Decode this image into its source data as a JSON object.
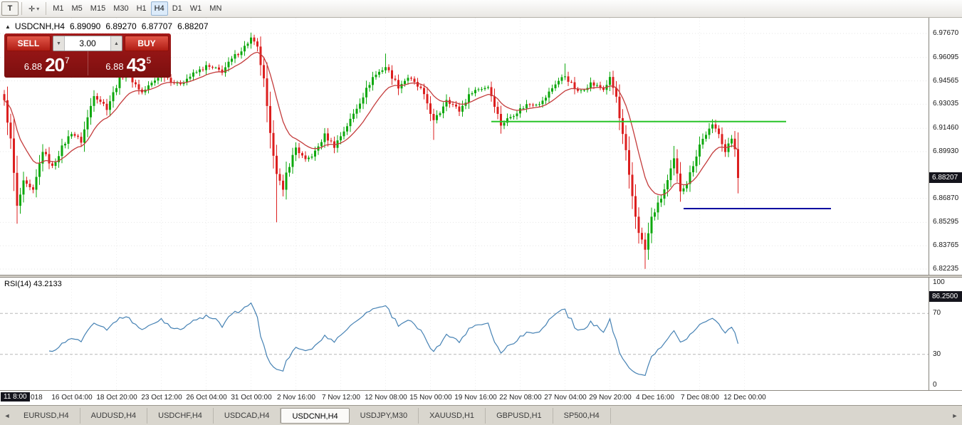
{
  "icons": {
    "collapse": "▲",
    "dropdown": "▾",
    "drawing_tool": "✛",
    "spin_down": "▼",
    "spin_up": "▲",
    "tab_left": "◄",
    "tab_right": "►"
  },
  "toolbar": {
    "left_button": "T",
    "timeframes": [
      "M1",
      "M5",
      "M15",
      "M30",
      "H1",
      "H4",
      "D1",
      "W1",
      "MN"
    ],
    "active_timeframe": "H4"
  },
  "chart": {
    "title": "USDCNH,H4",
    "ohlc": {
      "open": "6.89090",
      "high": "6.89270",
      "low": "6.87707",
      "close": "6.88207"
    }
  },
  "trade_panel": {
    "sell_label": "SELL",
    "buy_label": "BUY",
    "volume": "3.00",
    "sell_price": {
      "big": "6.88",
      "mid": "20",
      "sup": "7"
    },
    "buy_price": {
      "big": "6.88",
      "mid": "43",
      "sup": "5"
    }
  },
  "price_axis": {
    "labels": [
      "6.97670",
      "6.96095",
      "6.94565",
      "6.93035",
      "6.91460",
      "6.89930",
      "6.86870",
      "6.85295",
      "6.83765",
      "6.82235"
    ],
    "current": "6.88207"
  },
  "rsi": {
    "label": "RSI(14) 43.2133",
    "levels": [
      "100",
      "70",
      "30",
      "0"
    ],
    "badge": "86.2500",
    "badge_value": 86.25
  },
  "time_axis": {
    "badge": "11 8:00",
    "partial_label": "018",
    "labels": [
      {
        "bar": 21,
        "label": "16 Oct 04:00"
      },
      {
        "bar": 35,
        "label": "18 Oct 20:00"
      },
      {
        "bar": 49,
        "label": "23 Oct 12:00"
      },
      {
        "bar": 63,
        "label": "26 Oct 04:00"
      },
      {
        "bar": 77,
        "label": "31 Oct 00:00"
      },
      {
        "bar": 91,
        "label": "2 Nov 16:00"
      },
      {
        "bar": 105,
        "label": "7 Nov 12:00"
      },
      {
        "bar": 119,
        "label": "12 Nov 08:00"
      },
      {
        "bar": 133,
        "label": "15 Nov 00:00"
      },
      {
        "bar": 147,
        "label": "19 Nov 16:00"
      },
      {
        "bar": 161,
        "label": "22 Nov 08:00"
      },
      {
        "bar": 175,
        "label": "27 Nov 04:00"
      },
      {
        "bar": 189,
        "label": "29 Nov 20:00"
      },
      {
        "bar": 203,
        "label": "4 Dec 16:00"
      },
      {
        "bar": 217,
        "label": "7 Dec 08:00"
      },
      {
        "bar": 231,
        "label": "12 Dec 00:00"
      }
    ]
  },
  "tabs": {
    "items": [
      "EURUSD,H4",
      "AUDUSD,H4",
      "USDCHF,H4",
      "USDCAD,H4",
      "USDCNH,H4",
      "USDJPY,M30",
      "XAUUSD,H1",
      "GBPUSD,H1",
      "SP500,H4"
    ],
    "active": "USDCNH,H4"
  },
  "chart_data": {
    "type": "candlestick",
    "symbol": "USDCNH",
    "timeframe": "H4",
    "bars": 230,
    "ylim": [
      6.82235,
      6.9767
    ],
    "last_close": 6.88207,
    "colors": {
      "up": "#0ea80e",
      "down": "#dc1f1f"
    },
    "ma": {
      "type": "EMA",
      "period": 13,
      "color": "#c43c3c"
    },
    "rsi_period": 14,
    "rsi_color": "#4682B4",
    "rsi_levels": [
      70,
      30
    ],
    "close_waypoints": [
      [
        0,
        6.932
      ],
      [
        2,
        6.907
      ],
      [
        4,
        6.863
      ],
      [
        6,
        6.879
      ],
      [
        9,
        6.873
      ],
      [
        12,
        6.9
      ],
      [
        15,
        6.889
      ],
      [
        18,
        6.902
      ],
      [
        21,
        6.912
      ],
      [
        24,
        6.906
      ],
      [
        28,
        6.937
      ],
      [
        32,
        6.928
      ],
      [
        36,
        6.947
      ],
      [
        38,
        6.951
      ],
      [
        43,
        6.938
      ],
      [
        47,
        6.946
      ],
      [
        49,
        6.951
      ],
      [
        54,
        6.943
      ],
      [
        59,
        6.95
      ],
      [
        63,
        6.955
      ],
      [
        68,
        6.952
      ],
      [
        72,
        6.962
      ],
      [
        75,
        6.968
      ],
      [
        77,
        6.9735
      ],
      [
        79,
        6.967
      ],
      [
        81,
        6.946
      ],
      [
        83,
        6.91
      ],
      [
        85,
        6.886
      ],
      [
        87,
        6.873
      ],
      [
        88,
        6.885
      ],
      [
        91,
        6.902
      ],
      [
        94,
        6.893
      ],
      [
        97,
        6.899
      ],
      [
        100,
        6.91
      ],
      [
        103,
        6.903
      ],
      [
        106,
        6.913
      ],
      [
        108,
        6.92
      ],
      [
        112,
        6.936
      ],
      [
        115,
        6.948
      ],
      [
        119,
        6.955
      ],
      [
        123,
        6.942
      ],
      [
        126,
        6.948
      ],
      [
        130,
        6.94
      ],
      [
        132,
        6.931
      ],
      [
        134,
        6.919
      ],
      [
        136,
        6.925
      ],
      [
        138,
        6.934
      ],
      [
        142,
        6.926
      ],
      [
        146,
        6.939
      ],
      [
        151,
        6.942
      ],
      [
        153,
        6.93
      ],
      [
        155,
        6.917
      ],
      [
        159,
        6.924
      ],
      [
        163,
        6.93
      ],
      [
        168,
        6.932
      ],
      [
        172,
        6.944
      ],
      [
        175,
        6.949
      ],
      [
        179,
        6.938
      ],
      [
        183,
        6.944
      ],
      [
        187,
        6.94
      ],
      [
        189,
        6.947
      ],
      [
        191,
        6.935
      ],
      [
        192,
        6.921
      ],
      [
        194,
        6.899
      ],
      [
        195,
        6.883
      ],
      [
        197,
        6.857
      ],
      [
        198,
        6.847
      ],
      [
        200,
        6.835
      ],
      [
        202,
        6.856
      ],
      [
        205,
        6.869
      ],
      [
        207,
        6.88
      ],
      [
        209,
        6.894
      ],
      [
        211,
        6.874
      ],
      [
        213,
        6.879
      ],
      [
        214,
        6.885
      ],
      [
        216,
        6.897
      ],
      [
        217,
        6.904
      ],
      [
        219,
        6.911
      ],
      [
        221,
        6.916
      ],
      [
        223,
        6.912
      ],
      [
        225,
        6.899
      ],
      [
        227,
        6.908
      ],
      [
        228,
        6.902
      ],
      [
        229,
        6.88207
      ]
    ],
    "spikes": [
      {
        "bar": 4,
        "low": 6.8525
      },
      {
        "bar": 77,
        "high": 6.9767
      },
      {
        "bar": 85,
        "low": 6.853
      },
      {
        "bar": 119,
        "high": 6.9635
      },
      {
        "bar": 134,
        "low": 6.907
      },
      {
        "bar": 175,
        "high": 6.957
      },
      {
        "bar": 200,
        "low": 6.8225
      },
      {
        "bar": 209,
        "high": 6.903
      },
      {
        "bar": 221,
        "high": 6.9205
      },
      {
        "bar": 229,
        "low": 6.8735
      }
    ],
    "hlines": [
      {
        "color": "#28c428",
        "width": 2,
        "price": 6.919,
        "bar1": 152,
        "bar2": 244
      },
      {
        "color": "#0000a0",
        "width": 2,
        "price": 6.862,
        "bar1": 212,
        "bar2": 258
      }
    ]
  }
}
